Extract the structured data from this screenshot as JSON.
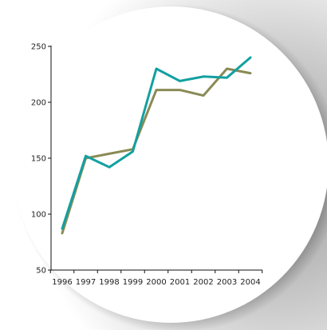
{
  "chart_data": {
    "type": "line",
    "categories": [
      "1996",
      "1997",
      "1998",
      "1999",
      "2000",
      "2001",
      "2002",
      "2003",
      "2004"
    ],
    "ylim": [
      50,
      250
    ],
    "yticks": [
      50,
      100,
      150,
      200,
      250
    ],
    "grid": false,
    "title": "",
    "xlabel": "",
    "ylabel": "",
    "series": [
      {
        "color": "#8a8a55",
        "values": [
          83,
          150,
          154,
          158,
          211,
          211,
          206,
          230,
          226
        ]
      },
      {
        "color": "#13a0a1",
        "values": [
          87,
          152,
          142,
          156,
          230,
          219,
          223,
          222,
          240
        ]
      }
    ]
  }
}
